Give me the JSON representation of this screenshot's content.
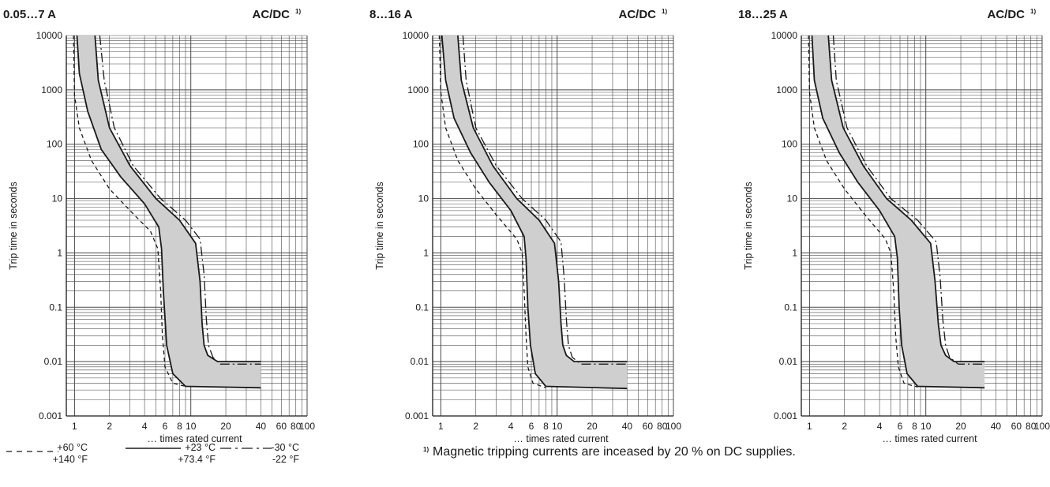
{
  "chart_data": [
    {
      "type": "line",
      "title": "0.05…7 A",
      "title_right": "AC/DC",
      "title_right_note": "1)",
      "xlabel": "… times rated current",
      "ylabel": "Trip time in seconds",
      "x_scale": "log",
      "y_scale": "log",
      "xlim": [
        0.85,
        100
      ],
      "ylim": [
        0.001,
        10000
      ],
      "grid": true,
      "x_tick_labels": [
        "1",
        "2",
        "4",
        "6",
        "8",
        "10",
        "20",
        "40",
        "60",
        "80",
        "100"
      ],
      "y_tick_labels": [
        "0.001",
        "0.01",
        "0.1",
        "1",
        "10",
        "100",
        "1000",
        "10000"
      ],
      "series": [
        {
          "style": "dashed",
          "x": [
            0.98,
            1.0,
            1.1,
            1.4,
            2.0,
            3.0,
            4.5,
            5.2,
            5.5,
            5.7,
            6.0,
            7.0,
            9.0
          ],
          "y": [
            10000,
            800,
            200,
            50,
            15,
            6,
            2.5,
            1.2,
            0.2,
            0.03,
            0.008,
            0.004,
            0.0035
          ]
        },
        {
          "style": "solid",
          "x": [
            1.05,
            1.1,
            1.3,
            1.7,
            2.5,
            4.0,
            5.3,
            5.6,
            5.8,
            6.2,
            7.0,
            9.0,
            40
          ],
          "y": [
            10000,
            2000,
            400,
            80,
            25,
            8,
            3,
            1.2,
            0.2,
            0.02,
            0.006,
            0.0035,
            0.0033
          ]
        },
        {
          "style": "solid",
          "x": [
            1.5,
            1.6,
            2.0,
            3.0,
            5.0,
            8.0,
            11.0,
            12.0,
            12.5,
            13.0,
            14.0,
            17.0,
            40
          ],
          "y": [
            10000,
            1500,
            200,
            40,
            10,
            4,
            1.5,
            0.3,
            0.05,
            0.02,
            0.013,
            0.01,
            0.01
          ]
        },
        {
          "style": "dashdot",
          "x": [
            1.65,
            1.8,
            2.2,
            3.2,
            5.5,
            9.0,
            12.0,
            13.0,
            13.6,
            14.2,
            15.5,
            18.0,
            40
          ],
          "y": [
            10000,
            1500,
            200,
            40,
            10,
            4,
            1.8,
            0.4,
            0.06,
            0.02,
            0.012,
            0.009,
            0.009
          ]
        }
      ]
    },
    {
      "type": "line",
      "title": "8…16 A",
      "title_right": "AC/DC",
      "title_right_note": "1)",
      "xlabel": "… times rated current",
      "ylabel": "Trip time in seconds",
      "x_scale": "log",
      "y_scale": "log",
      "xlim": [
        0.85,
        100
      ],
      "ylim": [
        0.001,
        10000
      ],
      "grid": true,
      "x_tick_labels": [
        "1",
        "2",
        "4",
        "6",
        "8",
        "10",
        "20",
        "40",
        "60",
        "80",
        "100"
      ],
      "y_tick_labels": [
        "0.001",
        "0.01",
        "0.1",
        "1",
        "10",
        "100",
        "1000",
        "10000"
      ],
      "series": [
        {
          "style": "dashed",
          "x": [
            0.97,
            1.0,
            1.1,
            1.4,
            2.0,
            3.0,
            4.5,
            5.0,
            5.2,
            5.4,
            5.6,
            6.2,
            8.0
          ],
          "y": [
            10000,
            900,
            200,
            50,
            15,
            5,
            1.8,
            1.0,
            0.2,
            0.03,
            0.008,
            0.004,
            0.0033
          ]
        },
        {
          "style": "solid",
          "x": [
            1.02,
            1.1,
            1.3,
            1.8,
            2.6,
            4.0,
            5.2,
            5.4,
            5.6,
            5.9,
            6.5,
            8.0,
            40
          ],
          "y": [
            10000,
            1500,
            300,
            70,
            20,
            6,
            2.0,
            0.8,
            0.1,
            0.02,
            0.006,
            0.0035,
            0.0032
          ]
        },
        {
          "style": "solid",
          "x": [
            1.4,
            1.5,
            1.9,
            2.8,
            4.5,
            7.0,
            9.5,
            10.3,
            10.8,
            11.2,
            12.0,
            14.0,
            40
          ],
          "y": [
            10000,
            1500,
            200,
            40,
            10,
            4,
            1.5,
            0.3,
            0.05,
            0.02,
            0.013,
            0.01,
            0.01
          ]
        },
        {
          "style": "dashdot",
          "x": [
            1.55,
            1.65,
            2.0,
            3.0,
            5.0,
            8.0,
            10.8,
            11.5,
            12.0,
            12.5,
            13.5,
            16.0,
            40
          ],
          "y": [
            10000,
            1500,
            200,
            40,
            10,
            4,
            1.6,
            0.35,
            0.06,
            0.02,
            0.012,
            0.009,
            0.009
          ]
        }
      ]
    },
    {
      "type": "line",
      "title": "18…25 A",
      "title_right": "AC/DC",
      "title_right_note": "1)",
      "xlabel": "… times rated current",
      "ylabel": "Trip time in seconds",
      "x_scale": "log",
      "y_scale": "log",
      "xlim": [
        0.85,
        100
      ],
      "ylim": [
        0.001,
        10000
      ],
      "grid": true,
      "x_tick_labels": [
        "1",
        "2",
        "4",
        "6",
        "8",
        "10",
        "20",
        "40",
        "60",
        "80",
        "100"
      ],
      "y_tick_labels": [
        "0.001",
        "0.01",
        "0.1",
        "1",
        "10",
        "100",
        "1000",
        "10000"
      ],
      "series": [
        {
          "style": "dashed",
          "x": [
            0.98,
            1.0,
            1.1,
            1.4,
            2.0,
            3.0,
            4.5,
            5.0,
            5.3,
            5.5,
            5.8,
            6.5,
            8.5
          ],
          "y": [
            10000,
            900,
            200,
            50,
            15,
            5,
            1.8,
            1.0,
            0.2,
            0.03,
            0.008,
            0.004,
            0.0034
          ]
        },
        {
          "style": "solid",
          "x": [
            1.05,
            1.1,
            1.3,
            1.8,
            2.6,
            4.0,
            5.4,
            5.7,
            5.9,
            6.2,
            6.9,
            8.5,
            32
          ],
          "y": [
            10000,
            1500,
            300,
            70,
            20,
            6,
            2.0,
            0.8,
            0.1,
            0.02,
            0.006,
            0.0035,
            0.0033
          ]
        },
        {
          "style": "solid",
          "x": [
            1.45,
            1.55,
            1.95,
            2.9,
            4.6,
            7.5,
            11.0,
            12.0,
            12.8,
            13.5,
            14.8,
            17.5,
            32
          ],
          "y": [
            10000,
            1500,
            200,
            40,
            10,
            4,
            1.5,
            0.3,
            0.05,
            0.02,
            0.013,
            0.01,
            0.01
          ]
        },
        {
          "style": "dashdot",
          "x": [
            1.6,
            1.7,
            2.1,
            3.1,
            5.0,
            8.5,
            12.3,
            13.3,
            14.0,
            14.8,
            16.0,
            19.0,
            32
          ],
          "y": [
            10000,
            1500,
            200,
            40,
            10,
            4,
            1.6,
            0.35,
            0.06,
            0.02,
            0.012,
            0.009,
            0.009
          ]
        }
      ]
    }
  ],
  "legend": {
    "items": [
      {
        "style": "dashed",
        "line1": "+60 °C",
        "line2": "+140 °F"
      },
      {
        "style": "solid",
        "line1": "+23 °C",
        "line2": "+73.4 °F"
      },
      {
        "style": "dashdot",
        "line1": "-30 °C",
        "line2": "-22 °F"
      }
    ]
  },
  "footnote": {
    "marker": "1)",
    "text": "Magnetic tripping currents are inceased by 20 % on DC supplies."
  },
  "colors": {
    "band_fill": "#cfcfcf",
    "line": "#1a1a1a",
    "grid": "#4a4a4a"
  }
}
